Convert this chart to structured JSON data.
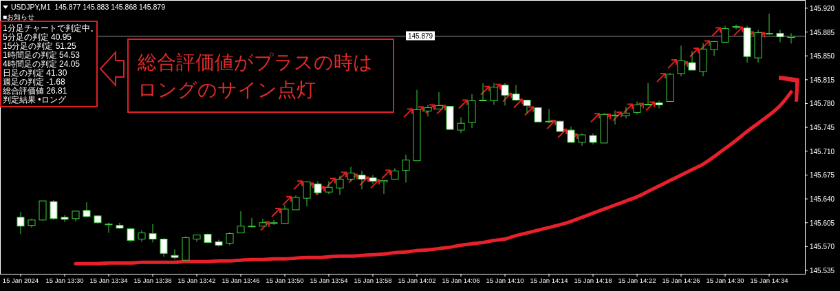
{
  "chart_data": {
    "type": "candlestick",
    "title": "USDJPY,M1  145.877 145.883 145.868 145.879",
    "color": "#3cd23c",
    "categories": [
      "15 Jan 2024",
      null,
      null,
      null,
      "15 Jan 13:30",
      null,
      null,
      null,
      "15 Jan 13:34",
      null,
      null,
      null,
      "15 Jan 13:38",
      null,
      null,
      null,
      "15 Jan 13:42",
      null,
      null,
      null,
      "15 Jan 13:46",
      null,
      null,
      null,
      "15 Jan 13:50",
      null,
      null,
      null,
      "15 Jan 13:54",
      null,
      null,
      null,
      "15 Jan 13:58",
      null,
      null,
      null,
      "15 Jan 14:02",
      null,
      null,
      null,
      "15 Jan 14:06",
      null,
      null,
      null,
      "15 Jan 14:10",
      null,
      null,
      null,
      "15 Jan 14:14",
      null,
      null,
      null,
      "15 Jan 14:18",
      null,
      null,
      null,
      "15 Jan 14:22",
      null,
      null,
      null,
      "15 Jan 14:26",
      null,
      null,
      null,
      "15 Jan 14:30",
      null,
      null,
      null,
      "15 Jan 14:34",
      null,
      null
    ],
    "ohlc": [
      [
        145.613,
        145.621,
        145.588,
        145.6
      ],
      [
        145.601,
        145.611,
        145.598,
        145.609
      ],
      [
        145.609,
        145.637,
        145.608,
        145.637
      ],
      [
        145.636,
        145.638,
        145.609,
        145.611
      ],
      [
        145.613,
        145.616,
        145.606,
        145.61
      ],
      [
        145.611,
        145.623,
        145.607,
        145.622
      ],
      [
        145.623,
        145.635,
        145.613,
        145.614
      ],
      [
        145.615,
        145.616,
        145.604,
        145.605
      ],
      [
        145.603,
        145.605,
        145.59,
        145.603
      ],
      [
        145.601,
        145.605,
        145.596,
        145.597
      ],
      [
        145.596,
        145.597,
        145.577,
        145.579
      ],
      [
        145.581,
        145.594,
        145.577,
        145.59
      ],
      [
        145.589,
        145.603,
        145.576,
        145.581
      ],
      [
        145.581,
        145.582,
        145.555,
        145.56
      ],
      [
        145.557,
        145.566,
        145.551,
        145.554
      ],
      [
        145.55,
        145.585,
        145.55,
        145.583
      ],
      [
        145.581,
        145.587,
        145.577,
        145.587
      ],
      [
        145.588,
        145.589,
        145.575,
        145.576
      ],
      [
        145.577,
        145.58,
        145.57,
        145.572
      ],
      [
        145.575,
        145.591,
        145.572,
        145.589
      ],
      [
        145.59,
        145.622,
        145.59,
        145.6
      ],
      [
        145.6,
        145.612,
        145.598,
        145.6
      ],
      [
        145.6,
        145.611,
        145.6,
        145.605
      ],
      [
        145.605,
        145.609,
        145.602,
        145.605
      ],
      [
        145.604,
        145.631,
        145.604,
        145.625
      ],
      [
        145.624,
        145.645,
        145.624,
        145.642
      ],
      [
        145.641,
        145.666,
        145.629,
        145.665
      ],
      [
        145.662,
        145.666,
        145.646,
        145.649
      ],
      [
        145.65,
        145.666,
        145.647,
        145.657
      ],
      [
        145.656,
        145.674,
        145.646,
        145.669
      ],
      [
        145.669,
        145.687,
        145.666,
        145.678
      ],
      [
        145.675,
        145.681,
        145.654,
        145.669
      ],
      [
        145.671,
        145.675,
        145.662,
        145.666
      ],
      [
        145.665,
        145.667,
        145.647,
        145.667
      ],
      [
        145.669,
        145.685,
        145.669,
        145.681
      ],
      [
        145.682,
        145.705,
        145.664,
        145.697
      ],
      [
        145.696,
        145.8,
        145.696,
        145.771
      ],
      [
        145.769,
        145.778,
        145.761,
        145.774
      ],
      [
        145.772,
        145.797,
        145.772,
        145.777
      ],
      [
        145.776,
        145.776,
        145.742,
        145.742
      ],
      [
        145.741,
        145.76,
        145.737,
        145.751
      ],
      [
        145.752,
        145.794,
        145.744,
        145.784
      ],
      [
        145.785,
        145.81,
        145.785,
        145.785
      ],
      [
        145.784,
        145.81,
        145.778,
        145.804
      ],
      [
        145.807,
        145.81,
        145.777,
        145.792
      ],
      [
        145.794,
        145.807,
        145.784,
        145.785
      ],
      [
        145.785,
        145.785,
        145.766,
        145.777
      ],
      [
        145.774,
        145.774,
        145.753,
        145.753
      ],
      [
        145.754,
        145.772,
        145.751,
        145.754
      ],
      [
        145.754,
        145.754,
        145.739,
        145.739
      ],
      [
        145.741,
        145.746,
        145.723,
        145.723
      ],
      [
        145.723,
        145.736,
        145.718,
        145.734
      ],
      [
        145.733,
        145.736,
        145.72,
        145.723
      ],
      [
        145.722,
        145.766,
        145.722,
        145.764
      ],
      [
        145.763,
        145.77,
        145.749,
        145.763
      ],
      [
        145.762,
        145.775,
        145.758,
        145.766
      ],
      [
        145.767,
        145.783,
        145.764,
        145.778
      ],
      [
        145.779,
        145.81,
        145.778,
        145.779
      ],
      [
        145.781,
        145.784,
        145.773,
        145.778
      ],
      [
        145.783,
        145.825,
        145.783,
        145.823
      ],
      [
        145.824,
        145.865,
        145.82,
        145.843
      ],
      [
        145.84,
        145.857,
        145.829,
        145.829
      ],
      [
        145.827,
        145.869,
        145.82,
        145.86
      ],
      [
        145.859,
        145.872,
        145.85,
        145.871
      ],
      [
        145.87,
        145.894,
        145.87,
        145.89
      ],
      [
        145.893,
        145.896,
        145.889,
        145.893
      ],
      [
        145.891,
        145.894,
        145.84,
        145.849
      ],
      [
        145.847,
        145.888,
        145.84,
        145.884
      ],
      [
        145.882,
        145.912,
        145.881,
        145.883
      ],
      [
        145.883,
        145.888,
        145.87,
        145.878
      ],
      [
        145.877,
        145.883,
        145.868,
        145.879
      ]
    ],
    "series": [
      {
        "type": "line",
        "color": "#e8202a",
        "values": [
          null,
          null,
          null,
          null,
          null,
          145.545,
          145.545,
          145.545,
          145.546,
          145.546,
          145.546,
          145.547,
          145.547,
          145.547,
          145.547,
          145.548,
          145.548,
          145.548,
          145.549,
          145.549,
          145.55,
          145.551,
          145.551,
          145.552,
          145.552,
          145.553,
          145.554,
          145.554,
          145.555,
          145.556,
          145.556,
          145.557,
          145.558,
          145.559,
          145.561,
          145.562,
          145.564,
          145.565,
          145.567,
          145.569,
          145.572,
          145.574,
          145.576,
          145.579,
          145.581,
          145.586,
          145.59,
          145.594,
          145.598,
          145.602,
          145.607,
          145.613,
          145.619,
          145.625,
          145.631,
          145.637,
          145.643,
          145.651,
          145.659,
          145.667,
          145.675,
          145.683,
          145.691,
          145.702,
          145.714,
          145.726,
          145.739,
          145.751,
          145.763,
          145.777,
          145.797
        ]
      }
    ],
    "ylim": [
      145.53,
      145.932
    ],
    "yticks": [
      145.535,
      {
        "value": 145.57,
        "label": "145.570"
      },
      145.605,
      {
        "value": 145.64,
        "label": "145.640"
      },
      145.675,
      {
        "value": 145.71,
        "label": "145.710"
      },
      145.745,
      {
        "value": 145.78,
        "label": "145.780"
      },
      145.815,
      {
        "value": 145.85,
        "label": "145.850"
      },
      145.885,
      {
        "value": 145.92,
        "label": "145.920"
      }
    ],
    "ref_lines": [
      {
        "axis": "y",
        "value": 145.879,
        "label": "145.879",
        "color": "#9a9a9a"
      }
    ],
    "annotations": [
      "■お知らせ",
      "1分足チャートで判定中。",
      "5分足の判定 40.95",
      "15分足の判定 51.25",
      "1時間足の判定 54.53",
      "4時間足の判定 24.05",
      "日足の判定 41.30",
      "週足の判定 -1.68",
      "総合評価値 26.81",
      "判定結果 •ロング",
      "総合評価値がプラスの時はロングのサイン点灯"
    ]
  }
}
